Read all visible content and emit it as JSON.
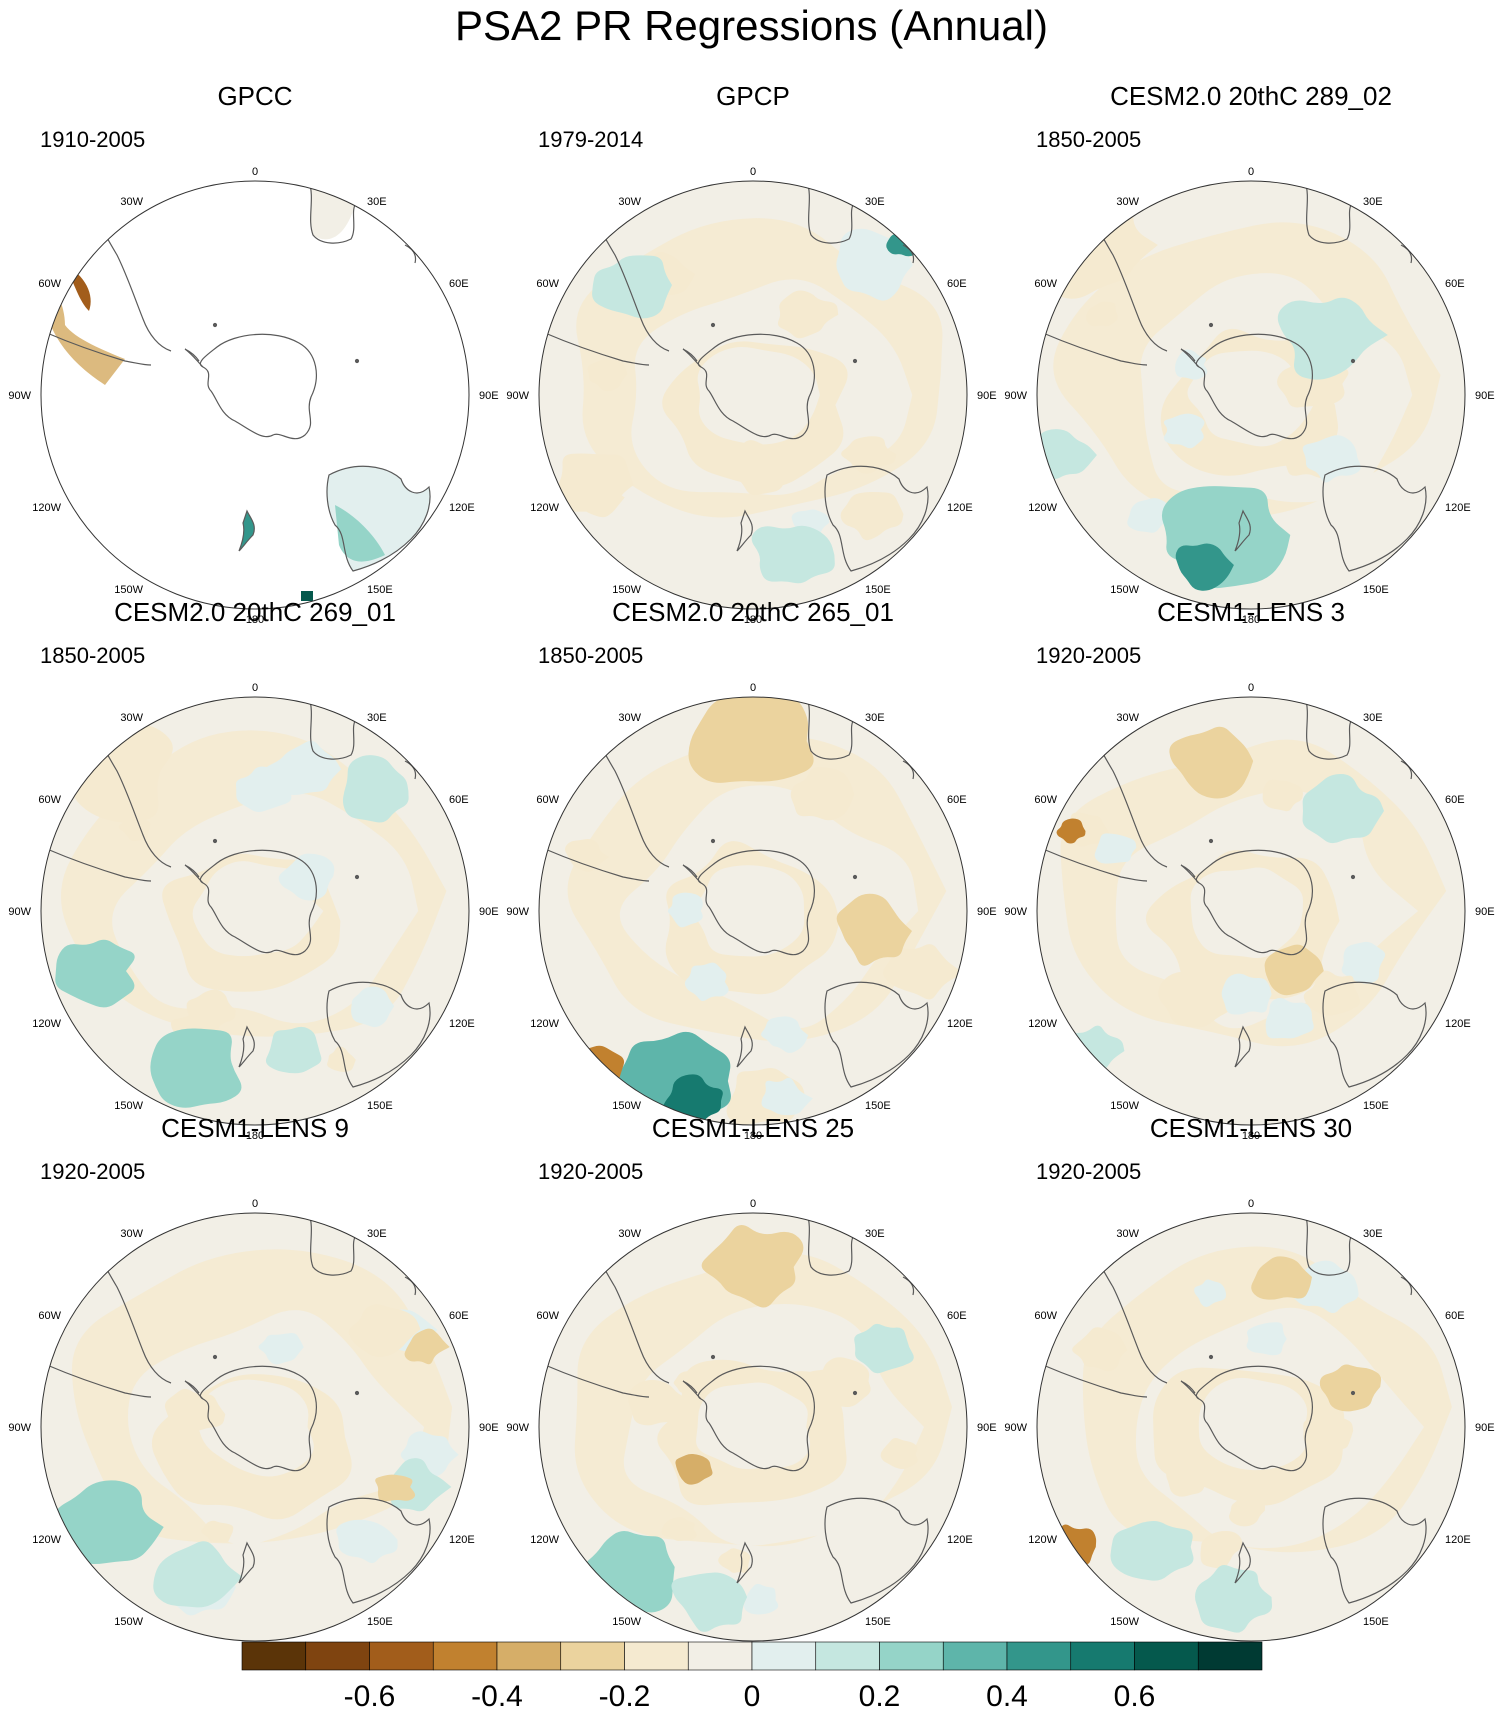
{
  "title": "PSA2 PR Regressions (Annual)",
  "longitude_labels": [
    "0",
    "30E",
    "60E",
    "90E",
    "120E",
    "150E",
    "180",
    "150W",
    "120W",
    "90W",
    "60W",
    "30W"
  ],
  "panels": [
    {
      "title": "GPCC",
      "period": "1910-2005",
      "land_only": true
    },
    {
      "title": "GPCP",
      "period": "1979-2014",
      "land_only": false
    },
    {
      "title": "CESM2.0 20thC 289_02",
      "period": "1850-2005",
      "land_only": false
    },
    {
      "title": "CESM2.0 20thC 269_01",
      "period": "1850-2005",
      "land_only": false
    },
    {
      "title": "CESM2.0 20thC 265_01",
      "period": "1850-2005",
      "land_only": false
    },
    {
      "title": "CESM1-LENS 3",
      "period": "1920-2005",
      "land_only": false
    },
    {
      "title": "CESM1-LENS 9",
      "period": "1920-2005",
      "land_only": false
    },
    {
      "title": "CESM1-LENS 25",
      "period": "1920-2005",
      "land_only": false
    },
    {
      "title": "CESM1-LENS 30",
      "period": "1920-2005",
      "land_only": false
    }
  ],
  "colorbar": {
    "colors": [
      "#5b3408",
      "#7f4410",
      "#a25d1b",
      "#c1812f",
      "#d6ae68",
      "#ebd39e",
      "#f5ead0",
      "#f2efe6",
      "#e2efee",
      "#c5e7e0",
      "#95d4c8",
      "#5eb5aa",
      "#33968b",
      "#167a6f",
      "#05594d",
      "#003a33"
    ],
    "tick_labels": [
      "-0.6",
      "-0.4",
      "-0.2",
      "0",
      "0.2",
      "0.4",
      "0.6"
    ]
  },
  "colors": {
    "coastline": "#5a5a5a",
    "map_border": "#333333",
    "background": "#ffffff"
  }
}
